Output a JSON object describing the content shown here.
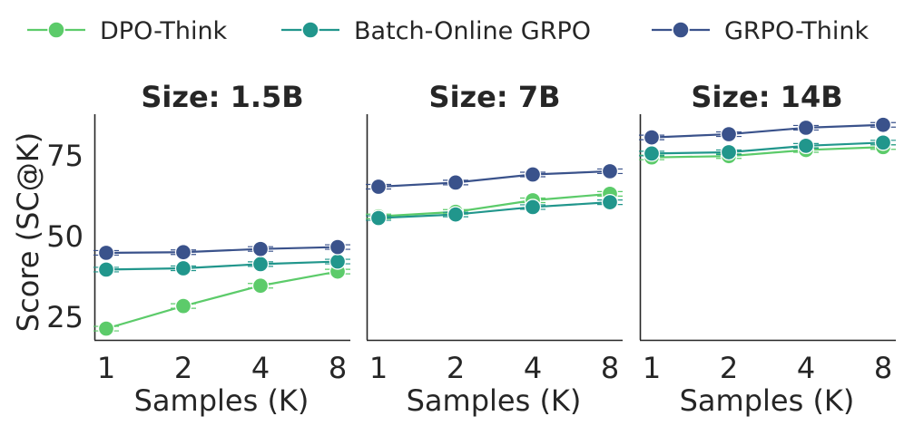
{
  "chart_data": {
    "type": "line",
    "legend": {
      "placement": "top"
    },
    "series_styles": [
      {
        "name": "DPO-Think",
        "color": "#5ccb6a"
      },
      {
        "name": "Batch-Online GRPO",
        "color": "#21968c"
      },
      {
        "name": "GRPO-Think",
        "color": "#3a528b"
      }
    ],
    "ylabel": "Score (SC@K)",
    "ylim": [
      18,
      88
    ],
    "yticks": [
      25,
      50,
      75
    ],
    "xlabel": "Samples (K)",
    "xticks": [
      "1",
      "2",
      "4",
      "8"
    ],
    "panels": [
      {
        "title": "Size: 1.5B",
        "series": [
          {
            "name": "DPO-Think",
            "values": [
              21.5,
              28.5,
              34.8,
              39.2
            ]
          },
          {
            "name": "Batch-Online GRPO",
            "values": [
              39.8,
              40.2,
              41.5,
              42.3
            ]
          },
          {
            "name": "GRPO-Think",
            "values": [
              45.0,
              45.2,
              46.2,
              46.8
            ]
          }
        ]
      },
      {
        "title": "Size: 7B",
        "series": [
          {
            "name": "DPO-Think",
            "values": [
              56.3,
              57.7,
              61.3,
              63.3
            ]
          },
          {
            "name": "Batch-Online GRPO",
            "values": [
              55.8,
              56.9,
              59.2,
              60.7
            ]
          },
          {
            "name": "GRPO-Think",
            "values": [
              65.5,
              66.8,
              69.3,
              70.3
            ]
          }
        ]
      },
      {
        "title": "Size: 14B",
        "series": [
          {
            "name": "DPO-Think",
            "values": [
              74.6,
              75.0,
              76.9,
              77.8
            ]
          },
          {
            "name": "Batch-Online GRPO",
            "values": [
              75.8,
              76.2,
              78.2,
              79.2
            ]
          },
          {
            "name": "GRPO-Think",
            "values": [
              80.8,
              81.8,
              83.8,
              84.7
            ]
          }
        ]
      }
    ]
  }
}
